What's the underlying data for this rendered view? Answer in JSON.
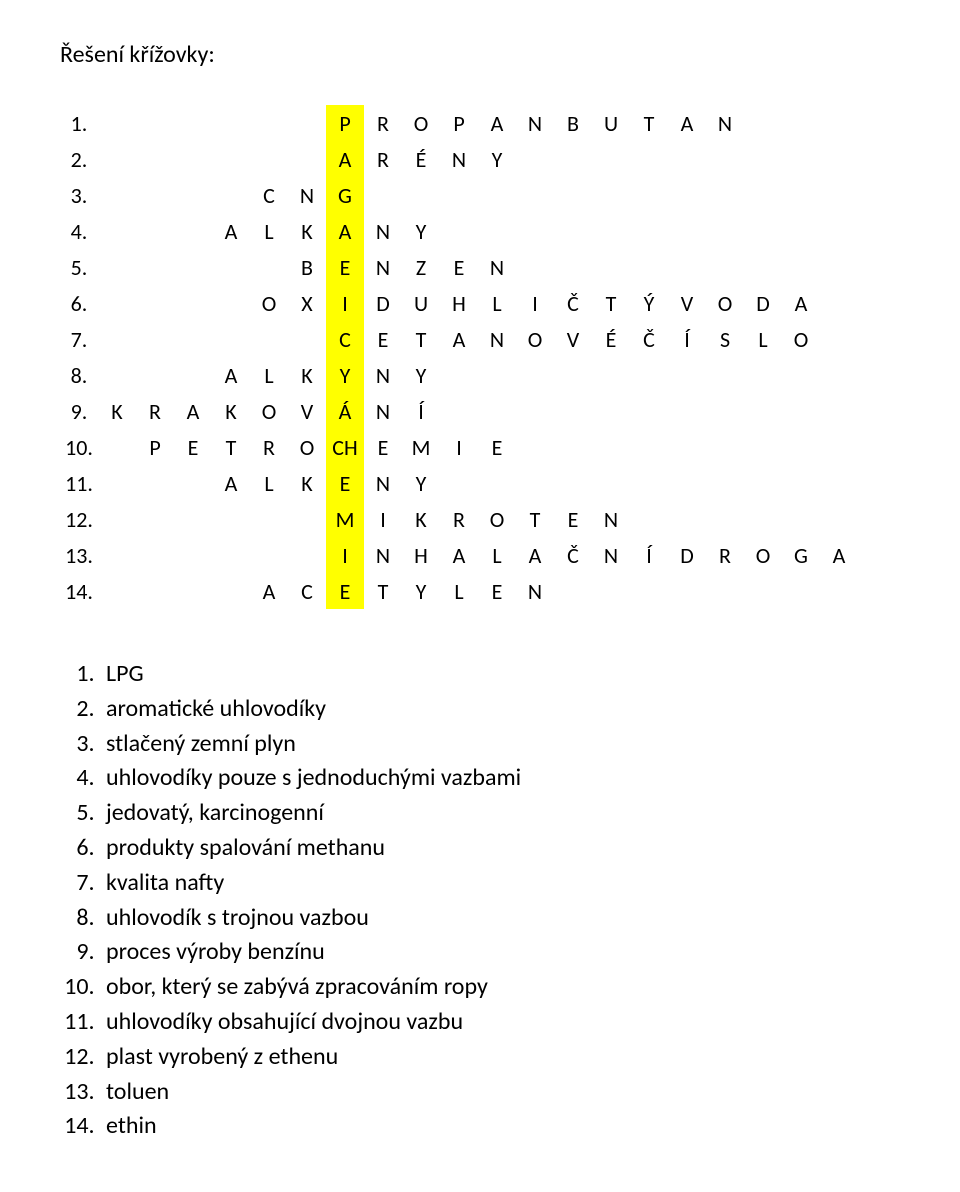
{
  "title": "Řešení křížovky:",
  "grid": {
    "cell_size": 38,
    "bg_color": "#ffffff",
    "highlight_color": "#ffff00",
    "border_color": "#000000",
    "highlight_col": 6,
    "rows": [
      {
        "num": "1.",
        "start": 6,
        "letters": [
          "P",
          "R",
          "O",
          "P",
          "A",
          "N",
          "B",
          "U",
          "T",
          "A",
          "N"
        ]
      },
      {
        "num": "2.",
        "start": 6,
        "letters": [
          "A",
          "R",
          "É",
          "N",
          "Y"
        ]
      },
      {
        "num": "3.",
        "start": 4,
        "letters": [
          "C",
          "N",
          "G"
        ]
      },
      {
        "num": "4.",
        "start": 3,
        "letters": [
          "A",
          "L",
          "K",
          "A",
          "N",
          "Y"
        ]
      },
      {
        "num": "5.",
        "start": 5,
        "letters": [
          "B",
          "E",
          "N",
          "Z",
          "E",
          "N"
        ]
      },
      {
        "num": "6.",
        "start": 4,
        "letters": [
          "O",
          "X",
          "I",
          "D",
          "U",
          "H",
          "L",
          "I",
          "Č",
          "T",
          "Ý",
          "V",
          "O",
          "D",
          "A"
        ]
      },
      {
        "num": "7.",
        "start": 6,
        "letters": [
          "C",
          "E",
          "T",
          "A",
          "N",
          "O",
          "V",
          "É",
          "Č",
          "Í",
          "S",
          "L",
          "O"
        ]
      },
      {
        "num": "8.",
        "start": 3,
        "letters": [
          "A",
          "L",
          "K",
          "Y",
          "N",
          "Y"
        ]
      },
      {
        "num": "9.",
        "start": 0,
        "letters": [
          "K",
          "R",
          "A",
          "K",
          "O",
          "V",
          "Á",
          "N",
          "Í"
        ]
      },
      {
        "num": "10.",
        "start": 1,
        "letters": [
          "P",
          "E",
          "T",
          "R",
          "O",
          "CH",
          "E",
          "M",
          "I",
          "E"
        ]
      },
      {
        "num": "11.",
        "start": 3,
        "letters": [
          "A",
          "L",
          "K",
          "E",
          "N",
          "Y"
        ]
      },
      {
        "num": "12.",
        "start": 6,
        "letters": [
          "M",
          "I",
          "K",
          "R",
          "O",
          "T",
          "E",
          "N"
        ]
      },
      {
        "num": "13.",
        "start": 6,
        "letters": [
          "I",
          "N",
          "H",
          "A",
          "L",
          "A",
          "Č",
          "N",
          "Í",
          "D",
          "R",
          "O",
          "G",
          "A"
        ]
      },
      {
        "num": "14.",
        "start": 4,
        "letters": [
          "A",
          "C",
          "E",
          "T",
          "Y",
          "L",
          "E",
          "N"
        ]
      }
    ]
  },
  "clues": [
    "LPG",
    "aromatické uhlovodíky",
    "stlačený zemní plyn",
    "uhlovodíky pouze s jednoduchými vazbami",
    "jedovatý, karcinogenní",
    "produkty spalování methanu",
    "kvalita nafty",
    "uhlovodík s trojnou vazbou",
    "proces výroby benzínu",
    "obor, který se zabývá zpracováním ropy",
    "uhlovodíky obsahující dvojnou vazbu",
    "plast vyrobený z ethenu",
    "toluen",
    "ethin"
  ]
}
